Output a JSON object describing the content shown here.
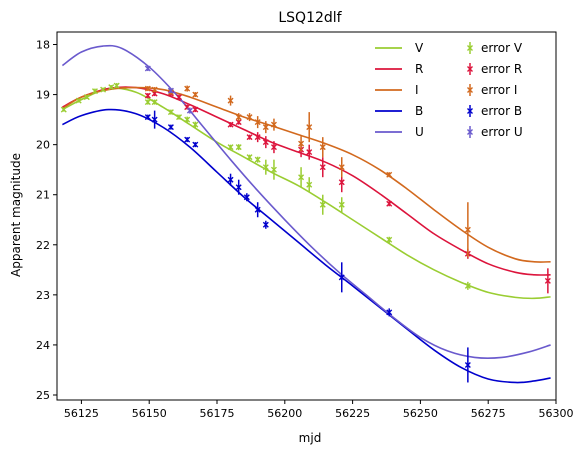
{
  "chart_data": {
    "type": "scatter",
    "title": "LSQ12dlf",
    "xlabel": "mjd",
    "ylabel": "Apparent magnitude",
    "xlim": [
      56116,
      56300
    ],
    "ylim": [
      17.75,
      25.1
    ],
    "y_inverted": true,
    "xticks": [
      56125,
      56150,
      56175,
      56200,
      56225,
      56250,
      56275,
      56300
    ],
    "yticks": [
      18,
      19,
      20,
      21,
      22,
      23,
      24,
      25
    ],
    "legend_position": "top-right",
    "legend_columns": 2,
    "models": [
      {
        "name": "V",
        "color": "#9acd32",
        "points": [
          [
            56118,
            19.3
          ],
          [
            56125,
            19.1
          ],
          [
            56135,
            18.88
          ],
          [
            56145,
            18.95
          ],
          [
            56155,
            19.25
          ],
          [
            56165,
            19.6
          ],
          [
            56175,
            19.95
          ],
          [
            56185,
            20.25
          ],
          [
            56195,
            20.55
          ],
          [
            56205,
            20.82
          ],
          [
            56215,
            21.15
          ],
          [
            56225,
            21.5
          ],
          [
            56235,
            21.85
          ],
          [
            56245,
            22.2
          ],
          [
            56255,
            22.5
          ],
          [
            56265,
            22.75
          ],
          [
            56275,
            22.95
          ],
          [
            56285,
            23.05
          ],
          [
            56292,
            23.07
          ],
          [
            56298,
            23.04
          ]
        ]
      },
      {
        "name": "R",
        "color": "#dc143c",
        "points": [
          [
            56118,
            19.25
          ],
          [
            56125,
            19.05
          ],
          [
            56135,
            18.88
          ],
          [
            56145,
            18.86
          ],
          [
            56155,
            18.98
          ],
          [
            56165,
            19.2
          ],
          [
            56175,
            19.45
          ],
          [
            56185,
            19.7
          ],
          [
            56195,
            19.95
          ],
          [
            56205,
            20.15
          ],
          [
            56215,
            20.35
          ],
          [
            56225,
            20.62
          ],
          [
            56235,
            20.98
          ],
          [
            56245,
            21.38
          ],
          [
            56255,
            21.78
          ],
          [
            56265,
            22.1
          ],
          [
            56275,
            22.38
          ],
          [
            56285,
            22.55
          ],
          [
            56292,
            22.6
          ],
          [
            56298,
            22.6
          ]
        ]
      },
      {
        "name": "I",
        "color": "#d2691e",
        "points": [
          [
            56118,
            19.28
          ],
          [
            56125,
            19.05
          ],
          [
            56135,
            18.9
          ],
          [
            56145,
            18.86
          ],
          [
            56155,
            18.9
          ],
          [
            56165,
            19.05
          ],
          [
            56175,
            19.25
          ],
          [
            56185,
            19.45
          ],
          [
            56195,
            19.62
          ],
          [
            56205,
            19.8
          ],
          [
            56215,
            19.98
          ],
          [
            56225,
            20.2
          ],
          [
            56235,
            20.5
          ],
          [
            56245,
            20.88
          ],
          [
            56255,
            21.3
          ],
          [
            56265,
            21.7
          ],
          [
            56275,
            22.05
          ],
          [
            56285,
            22.28
          ],
          [
            56292,
            22.34
          ],
          [
            56298,
            22.34
          ]
        ]
      },
      {
        "name": "B",
        "color": "#0000cd",
        "points": [
          [
            56118,
            19.6
          ],
          [
            56125,
            19.42
          ],
          [
            56135,
            19.3
          ],
          [
            56145,
            19.38
          ],
          [
            56155,
            19.65
          ],
          [
            56165,
            20.05
          ],
          [
            56175,
            20.55
          ],
          [
            56185,
            21.05
          ],
          [
            56195,
            21.5
          ],
          [
            56205,
            21.95
          ],
          [
            56215,
            22.4
          ],
          [
            56225,
            22.82
          ],
          [
            56235,
            23.25
          ],
          [
            56245,
            23.68
          ],
          [
            56255,
            24.1
          ],
          [
            56265,
            24.45
          ],
          [
            56275,
            24.68
          ],
          [
            56285,
            24.75
          ],
          [
            56292,
            24.72
          ],
          [
            56298,
            24.66
          ]
        ]
      },
      {
        "name": "U",
        "color": "#6a5acd",
        "points": [
          [
            56118,
            18.42
          ],
          [
            56125,
            18.15
          ],
          [
            56133,
            18.03
          ],
          [
            56140,
            18.08
          ],
          [
            56150,
            18.45
          ],
          [
            56160,
            19.0
          ],
          [
            56170,
            19.65
          ],
          [
            56180,
            20.3
          ],
          [
            56190,
            20.92
          ],
          [
            56200,
            21.5
          ],
          [
            56210,
            22.05
          ],
          [
            56220,
            22.55
          ],
          [
            56230,
            23.0
          ],
          [
            56240,
            23.45
          ],
          [
            56250,
            23.85
          ],
          [
            56260,
            24.12
          ],
          [
            56270,
            24.25
          ],
          [
            56280,
            24.25
          ],
          [
            56290,
            24.14
          ],
          [
            56298,
            24.0
          ]
        ]
      }
    ],
    "observations": [
      {
        "name": "error V",
        "color": "#9acd32",
        "points": [
          {
            "x": 56118.5,
            "y": 19.3,
            "err": 0.04
          },
          {
            "x": 56124,
            "y": 19.12,
            "err": 0.04
          },
          {
            "x": 56127,
            "y": 19.05,
            "err": 0.04
          },
          {
            "x": 56130,
            "y": 18.93,
            "err": 0.05
          },
          {
            "x": 56133,
            "y": 18.9,
            "err": 0.04
          },
          {
            "x": 56136,
            "y": 18.85,
            "err": 0.04
          },
          {
            "x": 56138,
            "y": 18.82,
            "err": 0.05
          },
          {
            "x": 56149.5,
            "y": 19.15,
            "err": 0.05
          },
          {
            "x": 56152,
            "y": 19.15,
            "err": 0.05
          },
          {
            "x": 56158,
            "y": 19.35,
            "err": 0.05
          },
          {
            "x": 56161,
            "y": 19.45,
            "err": 0.05
          },
          {
            "x": 56164,
            "y": 19.5,
            "err": 0.06
          },
          {
            "x": 56167,
            "y": 19.6,
            "err": 0.06
          },
          {
            "x": 56180,
            "y": 20.05,
            "err": 0.05
          },
          {
            "x": 56183,
            "y": 20.05,
            "err": 0.06
          },
          {
            "x": 56187,
            "y": 20.25,
            "err": 0.05
          },
          {
            "x": 56190,
            "y": 20.3,
            "err": 0.06
          },
          {
            "x": 56193,
            "y": 20.45,
            "err": 0.15
          },
          {
            "x": 56196,
            "y": 20.5,
            "err": 0.2
          },
          {
            "x": 56206,
            "y": 20.65,
            "err": 0.2
          },
          {
            "x": 56209,
            "y": 20.8,
            "err": 0.15
          },
          {
            "x": 56214,
            "y": 21.2,
            "err": 0.2
          },
          {
            "x": 56221,
            "y": 21.2,
            "err": 0.15
          },
          {
            "x": 56238.5,
            "y": 21.9,
            "err": 0.06
          },
          {
            "x": 56267.5,
            "y": 22.82,
            "err": 0.08
          }
        ]
      },
      {
        "name": "error R",
        "color": "#dc143c",
        "points": [
          {
            "x": 56149.5,
            "y": 19.02,
            "err": 0.05
          },
          {
            "x": 56152,
            "y": 18.98,
            "err": 0.05
          },
          {
            "x": 56158,
            "y": 18.98,
            "err": 0.05
          },
          {
            "x": 56161,
            "y": 19.05,
            "err": 0.05
          },
          {
            "x": 56164,
            "y": 19.25,
            "err": 0.05
          },
          {
            "x": 56167,
            "y": 19.3,
            "err": 0.05
          },
          {
            "x": 56180,
            "y": 19.6,
            "err": 0.05
          },
          {
            "x": 56183,
            "y": 19.55,
            "err": 0.05
          },
          {
            "x": 56187,
            "y": 19.85,
            "err": 0.05
          },
          {
            "x": 56190,
            "y": 19.85,
            "err": 0.1
          },
          {
            "x": 56193,
            "y": 19.95,
            "err": 0.12
          },
          {
            "x": 56196,
            "y": 20.05,
            "err": 0.12
          },
          {
            "x": 56206,
            "y": 20.1,
            "err": 0.15
          },
          {
            "x": 56209,
            "y": 20.15,
            "err": 0.15
          },
          {
            "x": 56214,
            "y": 20.45,
            "err": 0.2
          },
          {
            "x": 56221,
            "y": 20.75,
            "err": 0.2
          },
          {
            "x": 56238.5,
            "y": 21.18,
            "err": 0.05
          },
          {
            "x": 56267.5,
            "y": 22.18,
            "err": 0.1
          },
          {
            "x": 56297,
            "y": 22.72,
            "err": 0.25
          }
        ]
      },
      {
        "name": "error I",
        "color": "#d2691e",
        "points": [
          {
            "x": 56149.5,
            "y": 18.88,
            "err": 0.05
          },
          {
            "x": 56152,
            "y": 18.9,
            "err": 0.05
          },
          {
            "x": 56158,
            "y": 18.95,
            "err": 0.05
          },
          {
            "x": 56164,
            "y": 18.88,
            "err": 0.06
          },
          {
            "x": 56167,
            "y": 19.0,
            "err": 0.05
          },
          {
            "x": 56180,
            "y": 19.12,
            "err": 0.1
          },
          {
            "x": 56183,
            "y": 19.45,
            "err": 0.08
          },
          {
            "x": 56187,
            "y": 19.45,
            "err": 0.08
          },
          {
            "x": 56190,
            "y": 19.55,
            "err": 0.12
          },
          {
            "x": 56193,
            "y": 19.65,
            "err": 0.12
          },
          {
            "x": 56196,
            "y": 19.6,
            "err": 0.12
          },
          {
            "x": 56206,
            "y": 19.98,
            "err": 0.15
          },
          {
            "x": 56209,
            "y": 19.65,
            "err": 0.3
          },
          {
            "x": 56214,
            "y": 20.05,
            "err": 0.2
          },
          {
            "x": 56221,
            "y": 20.45,
            "err": 0.2
          },
          {
            "x": 56238.5,
            "y": 20.6,
            "err": 0.05
          },
          {
            "x": 56267.5,
            "y": 21.7,
            "err": 0.55
          }
        ]
      },
      {
        "name": "error B",
        "color": "#0000cd",
        "points": [
          {
            "x": 56149.5,
            "y": 19.45,
            "err": 0.05
          },
          {
            "x": 56152,
            "y": 19.5,
            "err": 0.18
          },
          {
            "x": 56158,
            "y": 19.65,
            "err": 0.05
          },
          {
            "x": 56164,
            "y": 19.9,
            "err": 0.05
          },
          {
            "x": 56167,
            "y": 20.0,
            "err": 0.05
          },
          {
            "x": 56180,
            "y": 20.7,
            "err": 0.12
          },
          {
            "x": 56183,
            "y": 20.85,
            "err": 0.15
          },
          {
            "x": 56186,
            "y": 21.05,
            "err": 0.08
          },
          {
            "x": 56190,
            "y": 21.3,
            "err": 0.15
          },
          {
            "x": 56193,
            "y": 21.6,
            "err": 0.08
          },
          {
            "x": 56221,
            "y": 22.65,
            "err": 0.3
          },
          {
            "x": 56238.5,
            "y": 23.35,
            "err": 0.08
          },
          {
            "x": 56267.5,
            "y": 24.4,
            "err": 0.35
          }
        ]
      },
      {
        "name": "error U",
        "color": "#6a5acd",
        "points": [
          {
            "x": 56149.5,
            "y": 18.48,
            "err": 0.05
          },
          {
            "x": 56158,
            "y": 18.92,
            "err": 0.05
          },
          {
            "x": 56165,
            "y": 19.32,
            "err": 0.06
          }
        ]
      }
    ]
  }
}
